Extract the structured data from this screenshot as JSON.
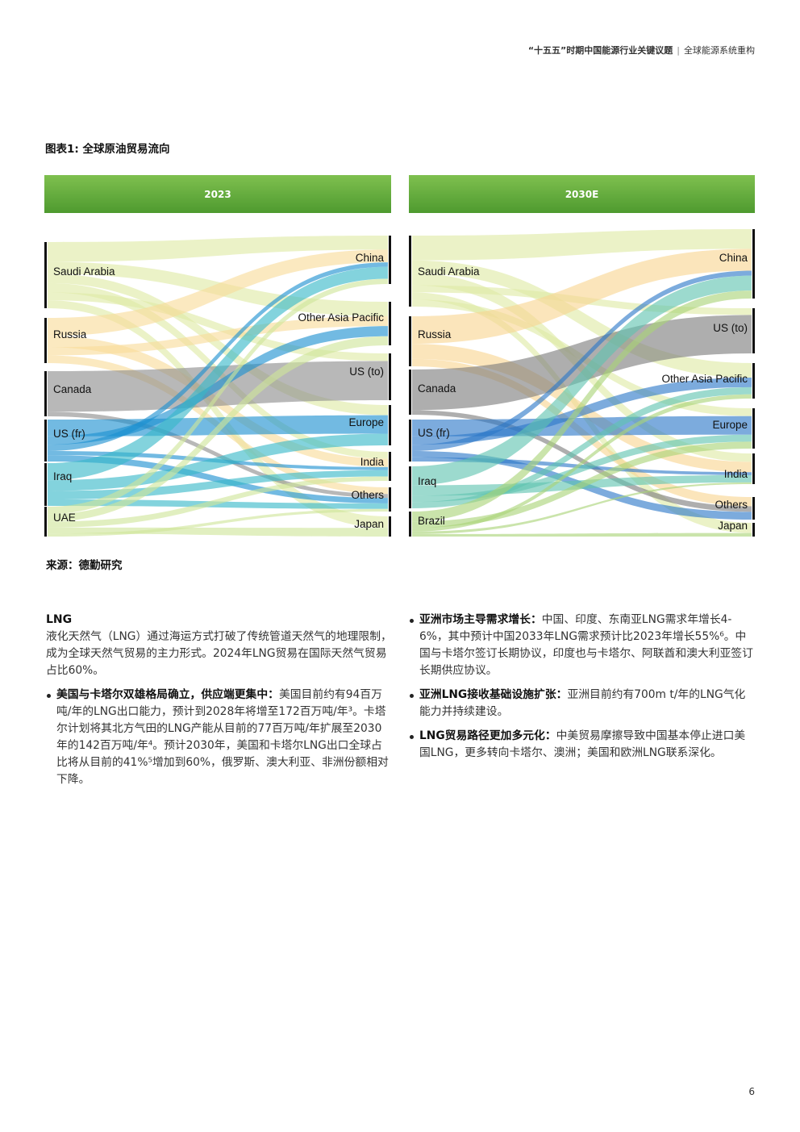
{
  "header": {
    "title_bold": "“十五五”时期中国能源行业关键议题",
    "separator": "|",
    "title_regular": "全球能源系统重构"
  },
  "figure": {
    "title": "图表1: 全球原油贸易流向",
    "source": "来源：德勤研究"
  },
  "chart_data": [
    {
      "type": "sankey",
      "title": "2023",
      "sources": [
        {
          "name": "Saudi Arabia",
          "color": "#dfeaa5"
        },
        {
          "name": "Russia",
          "color": "#f8dc9a"
        },
        {
          "name": "Canada",
          "color": "#8d8d8d"
        },
        {
          "name": "US (fr)",
          "color": "#1c8fd1"
        },
        {
          "name": "Iraq",
          "color": "#37b8c8"
        },
        {
          "name": "UAE",
          "color": "#cfe59a"
        }
      ],
      "targets": [
        {
          "name": "China"
        },
        {
          "name": "Other Asia Pacific"
        },
        {
          "name": "US (to)"
        },
        {
          "name": "Europe"
        },
        {
          "name": "India"
        },
        {
          "name": "Others"
        },
        {
          "name": "Japan"
        }
      ]
    },
    {
      "type": "sankey",
      "title": "2030E",
      "sources": [
        {
          "name": "Saudi Arabia",
          "color": "#dfeaa5"
        },
        {
          "name": "Russia",
          "color": "#f8d591"
        },
        {
          "name": "Canada",
          "color": "#7d7d7d"
        },
        {
          "name": "US (fr)",
          "color": "#2b78c8"
        },
        {
          "name": "Iraq",
          "color": "#60c4b0"
        },
        {
          "name": "Brazil",
          "color": "#a9d477"
        }
      ],
      "targets": [
        {
          "name": "China"
        },
        {
          "name": "US (to)"
        },
        {
          "name": "Other Asia Pacific"
        },
        {
          "name": "Europe"
        },
        {
          "name": "India"
        },
        {
          "name": "Others"
        },
        {
          "name": "Japan"
        }
      ]
    }
  ],
  "text": {
    "section_heading": "LNG",
    "intro": "液化天然气（LNG）通过海运方式打破了传统管道天然气的地理限制，成为全球天然气贸易的主力形式。2024年LNG贸易在国际天然气贸易占比60%。",
    "bullets_left": [
      {
        "lead": "美国与卡塔尔双雄格局确立，供应端更集中：",
        "body": "美国目前约有94百万吨/年的LNG出口能力，预计到2028年将增至172百万吨/年³。卡塔尔计划将其北方气田的LNG产能从目前的77百万吨/年扩展至2030年的142百万吨/年⁴。预计2030年，美国和卡塔尔LNG出口全球占比将从目前的41%⁵增加到60%，俄罗斯、澳大利亚、非洲份额相对下降。"
      }
    ],
    "bullets_right": [
      {
        "lead": "亚洲市场主导需求增长：",
        "body": "中国、印度、东南亚LNG需求年增长4-6%，其中预计中国2033年LNG需求预计比2023年增长55%⁶。中国与卡塔尔签订长期协议，印度也与卡塔尔、阿联酋和澳大利亚签订长期供应协议。"
      },
      {
        "lead": "亚洲LNG接收基础设施扩张：",
        "body": "亚洲目前约有700m t/年的LNG气化能力并持续建设。"
      },
      {
        "lead": "LNG贸易路径更加多元化：",
        "body": "中美贸易摩擦导致中国基本停止进口美国LNG，更多转向卡塔尔、澳洲；美国和欧洲LNG联系深化。"
      }
    ]
  },
  "page_number": "6"
}
